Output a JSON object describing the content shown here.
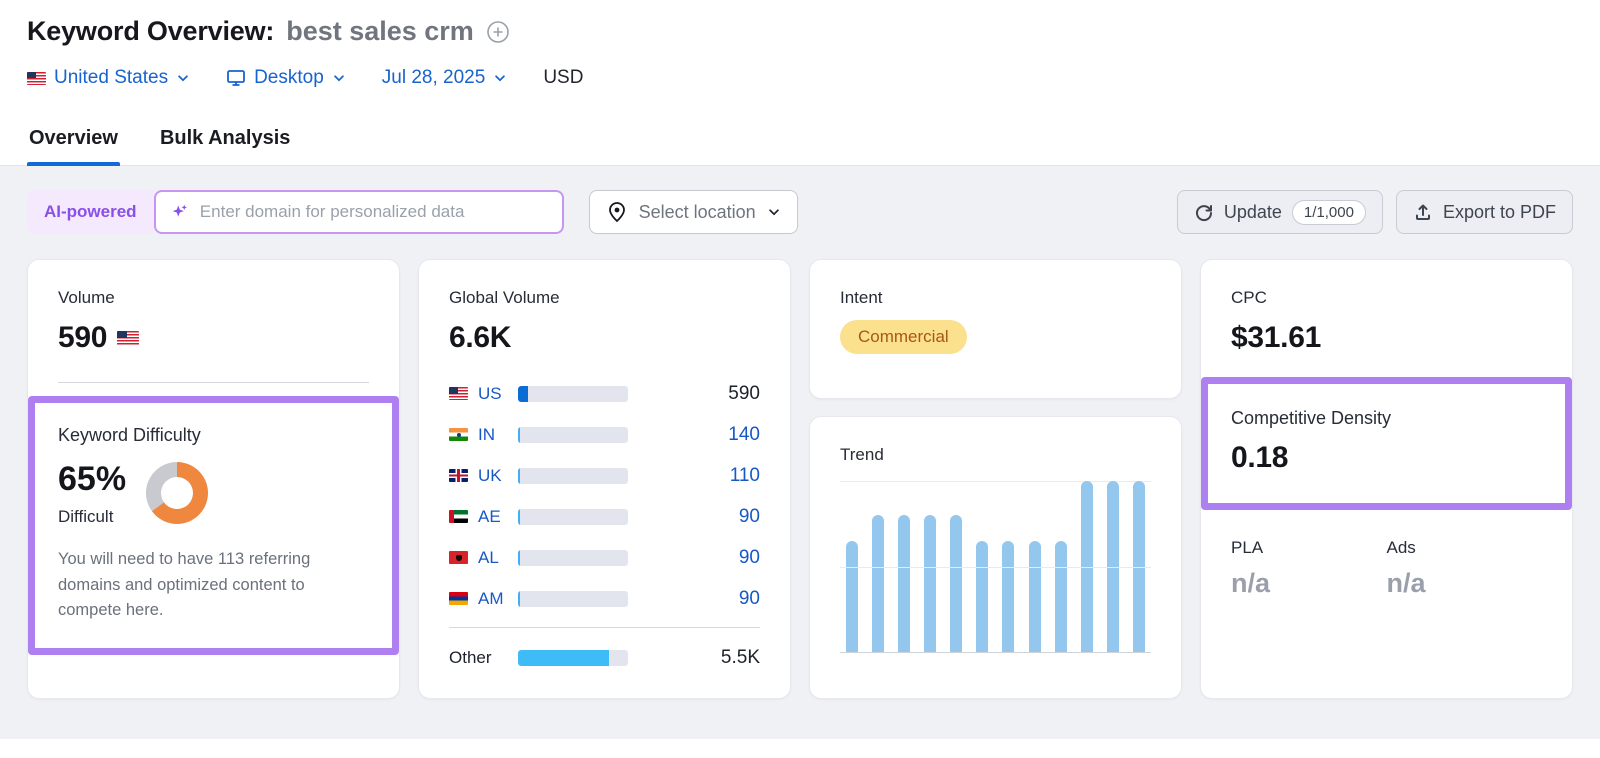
{
  "header": {
    "title": "Keyword Overview:",
    "keyword": "best sales crm",
    "filters": {
      "country": "United States",
      "device": "Desktop",
      "date": "Jul 28, 2025",
      "currency": "USD"
    },
    "tabs": [
      {
        "label": "Overview",
        "active": true
      },
      {
        "label": "Bulk Analysis",
        "active": false
      }
    ]
  },
  "toolbar": {
    "ai_chip": "AI-powered",
    "domain_placeholder": "Enter domain for personalized data",
    "location_button": "Select location",
    "update_button": "Update",
    "update_quota": "1/1,000",
    "export_button": "Export to PDF"
  },
  "cards": {
    "volume": {
      "label": "Volume",
      "value": "590",
      "flag": "us"
    },
    "keyword_difficulty": {
      "label": "Keyword Difficulty",
      "value": "65%",
      "percent": 65,
      "level": "Difficult",
      "description": "You will need to have 113 referring domains and optimized content to compete here."
    },
    "global_volume": {
      "label": "Global Volume",
      "value": "6.6K",
      "countries": [
        {
          "code": "US",
          "flag": "us",
          "value": "590",
          "share": 9,
          "highlight": true
        },
        {
          "code": "IN",
          "flag": "in",
          "value": "140",
          "share": 2,
          "highlight": false
        },
        {
          "code": "UK",
          "flag": "uk",
          "value": "110",
          "share": 2,
          "highlight": false
        },
        {
          "code": "AE",
          "flag": "ae",
          "value": "90",
          "share": 2,
          "highlight": false
        },
        {
          "code": "AL",
          "flag": "al",
          "value": "90",
          "share": 2,
          "highlight": false
        },
        {
          "code": "AM",
          "flag": "am",
          "value": "90",
          "share": 2,
          "highlight": false
        }
      ],
      "other": {
        "label": "Other",
        "value": "5.5K",
        "share": 83
      }
    },
    "intent": {
      "label": "Intent",
      "value": "Commercial"
    },
    "trend": {
      "label": "Trend",
      "chart_data": {
        "type": "bar",
        "x": [
          1,
          2,
          3,
          4,
          5,
          6,
          7,
          8,
          9,
          10,
          11,
          12
        ],
        "values": [
          65,
          80,
          80,
          80,
          80,
          65,
          65,
          65,
          65,
          100,
          100,
          100
        ],
        "title": "Trend",
        "xlabel": "",
        "ylabel": "",
        "ylim": [
          0,
          100
        ],
        "grid": "horizontal, 3 lines (top, middle, baseline)",
        "bar_color": "#94c7ed"
      }
    },
    "cpc": {
      "label": "CPC",
      "value": "$31.61"
    },
    "competitive_density": {
      "label": "Competitive Density",
      "value": "0.18"
    },
    "pla": {
      "label": "PLA",
      "value": "n/a"
    },
    "ads": {
      "label": "Ads",
      "value": "n/a"
    }
  },
  "colors": {
    "accent_blue": "#1763cf",
    "tab_underline": "#1668d8",
    "purple_highlight": "#ad7ff0",
    "ai_purple": "#8a4fe8",
    "donut_fill": "#f0873f",
    "donut_rest": "#c8cacf",
    "intent_badge_bg": "#fbe08e",
    "intent_badge_text": "#a85815",
    "bar_track": "#e3e5ee",
    "bar_us_fill": "#0b6cd6",
    "bar_small_fill": "#41aef8",
    "bar_other_fill": "#3fbcf8",
    "trend_bar": "#94c7ed",
    "content_bg": "#f0f1f5"
  }
}
